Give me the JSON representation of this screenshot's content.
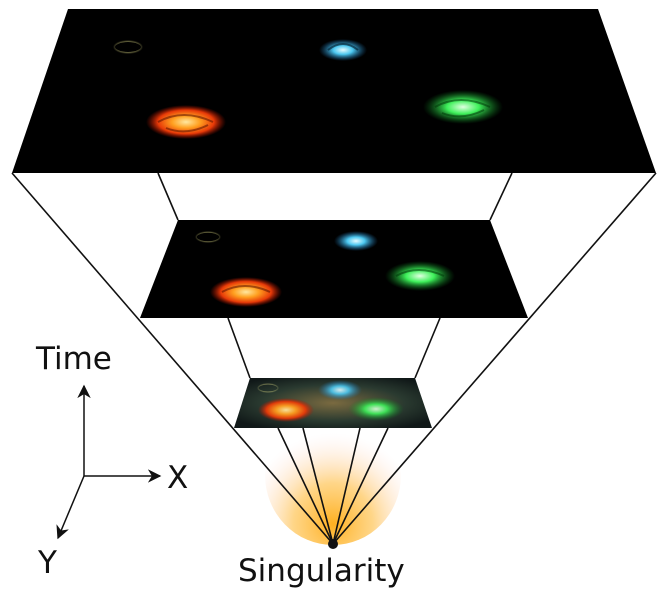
{
  "labels": {
    "time": "Time",
    "x_axis": "X",
    "y_axis": "Y",
    "singularity": "Singularity"
  },
  "colors": {
    "background": "#ffffff",
    "plane": "#000000",
    "outline": "#111111",
    "glow": "#ffb020",
    "galaxy_yellow": "#e8e48a",
    "galaxy_blue": "#4cc8f0",
    "galaxy_orange": "#ff6a10",
    "galaxy_green": "#3ef05a"
  },
  "galaxies": [
    "yellow-ring-galaxy",
    "blue-spiral-galaxy",
    "orange-spiral-galaxy",
    "green-spiral-galaxy"
  ]
}
